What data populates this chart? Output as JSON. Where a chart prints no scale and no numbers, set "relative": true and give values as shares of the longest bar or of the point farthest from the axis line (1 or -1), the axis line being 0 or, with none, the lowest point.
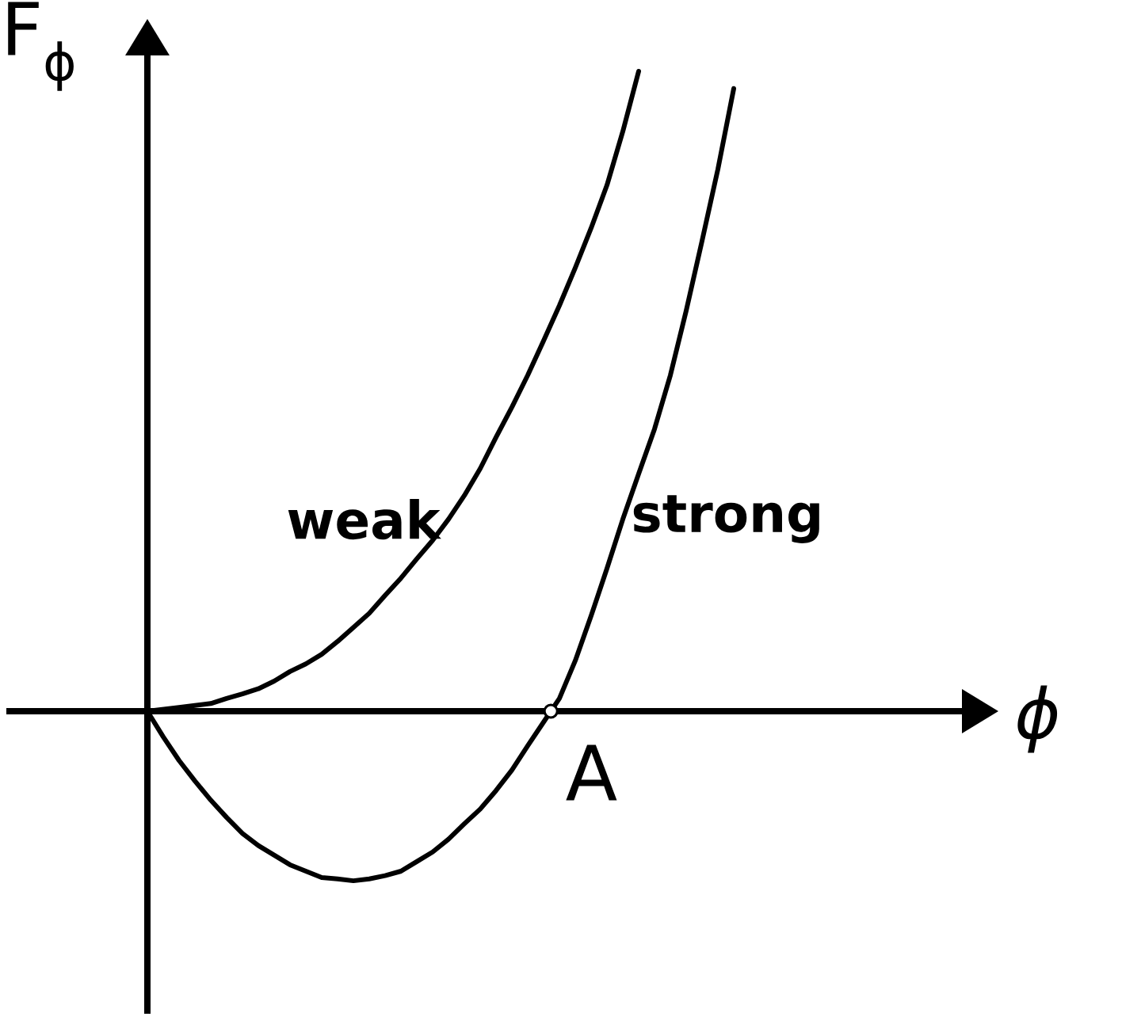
{
  "chart_data": {
    "type": "line",
    "xlabel": "ϕ",
    "ylabel": "F$_{ϕ}$",
    "relative": true,
    "categories": [
      null,
      null,
      null,
      null,
      null,
      null,
      null,
      null,
      null,
      null,
      null,
      null,
      null,
      null,
      null,
      null,
      null,
      null,
      null,
      null,
      null,
      null,
      null,
      null,
      null,
      null,
      null,
      null,
      null,
      null,
      null,
      null,
      null,
      null,
      null,
      null,
      null,
      null
    ],
    "series": [
      {
        "name": "weak",
        "color": "#000000",
        "values": [
          0,
          0.003,
          0.006,
          0.009,
          0.012,
          0.02,
          0.027,
          0.035,
          0.047,
          0.062,
          0.074,
          0.089,
          0.109,
          0.131,
          0.153,
          0.181,
          0.208,
          0.238,
          0.267,
          0.3,
          0.337,
          0.379,
          0.428,
          0.475,
          0.525,
          0.579,
          0.634,
          0.693,
          0.755,
          0.822,
          0.906,
          1,
          null,
          null,
          null,
          null,
          null,
          null
        ]
      },
      {
        "name": "strong",
        "color": "#000000",
        "values": [
          0,
          -0.04,
          -0.077,
          -0.109,
          -0.139,
          -0.166,
          -0.191,
          -0.21,
          -0.225,
          -0.24,
          -0.25,
          -0.26,
          -0.262,
          -0.265,
          -0.262,
          -0.257,
          -0.25,
          -0.235,
          -0.22,
          -0.2,
          -0.176,
          -0.153,
          -0.124,
          -0.092,
          -0.054,
          -0.017,
          0.02,
          0.079,
          0.149,
          0.223,
          0.3,
          0.371,
          0.441,
          0.525,
          0.626,
          0.735,
          0.847,
          0.973
        ]
      }
    ],
    "annotations": [
      "A"
    ]
  }
}
